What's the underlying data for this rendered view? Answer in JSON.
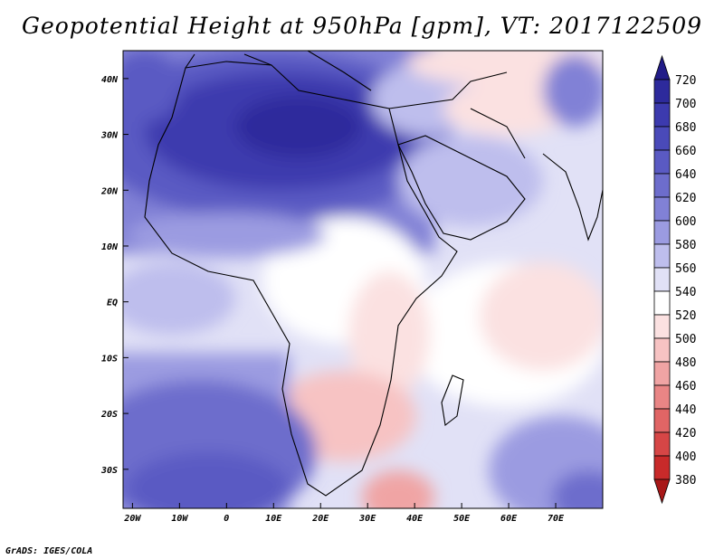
{
  "title": "Geopotential Height at 950hPa [gpm], VT: 2017122509",
  "credit": "GrADS: IGES/COLA",
  "map": {
    "lat_labels": [
      {
        "lat": 40,
        "text": "40N"
      },
      {
        "lat": 30,
        "text": "30N"
      },
      {
        "lat": 20,
        "text": "20N"
      },
      {
        "lat": 10,
        "text": "10N"
      },
      {
        "lat": 0,
        "text": "EQ"
      },
      {
        "lat": -10,
        "text": "10S"
      },
      {
        "lat": -20,
        "text": "20S"
      },
      {
        "lat": -30,
        "text": "30S"
      }
    ],
    "lon_labels": [
      {
        "lon": -20,
        "text": "20W"
      },
      {
        "lon": -10,
        "text": "10W"
      },
      {
        "lon": 0,
        "text": "0"
      },
      {
        "lon": 10,
        "text": "10E"
      },
      {
        "lon": 20,
        "text": "20E"
      },
      {
        "lon": 30,
        "text": "30E"
      },
      {
        "lon": 40,
        "text": "40E"
      },
      {
        "lon": 50,
        "text": "50E"
      },
      {
        "lon": 60,
        "text": "60E"
      },
      {
        "lon": 70,
        "text": "70E"
      }
    ],
    "lon_range": [
      -22,
      80
    ],
    "lat_range": [
      -37,
      45
    ]
  },
  "colorbar": {
    "labels": [
      "720",
      "700",
      "680",
      "660",
      "640",
      "620",
      "600",
      "580",
      "560",
      "540",
      "520",
      "500",
      "480",
      "460",
      "440",
      "420",
      "400",
      "380"
    ],
    "colors": [
      "#221c88",
      "#2d2a9c",
      "#3c3aae",
      "#4a4ab9",
      "#5a5ac3",
      "#6d6dcc",
      "#8181d6",
      "#9b9be1",
      "#bebeed",
      "#e1e1f6",
      "#ffffff",
      "#fbe1e1",
      "#f7c3c3",
      "#f0a4a4",
      "#e98585",
      "#e06565",
      "#d64646",
      "#c82a2a",
      "#a81818"
    ]
  }
}
